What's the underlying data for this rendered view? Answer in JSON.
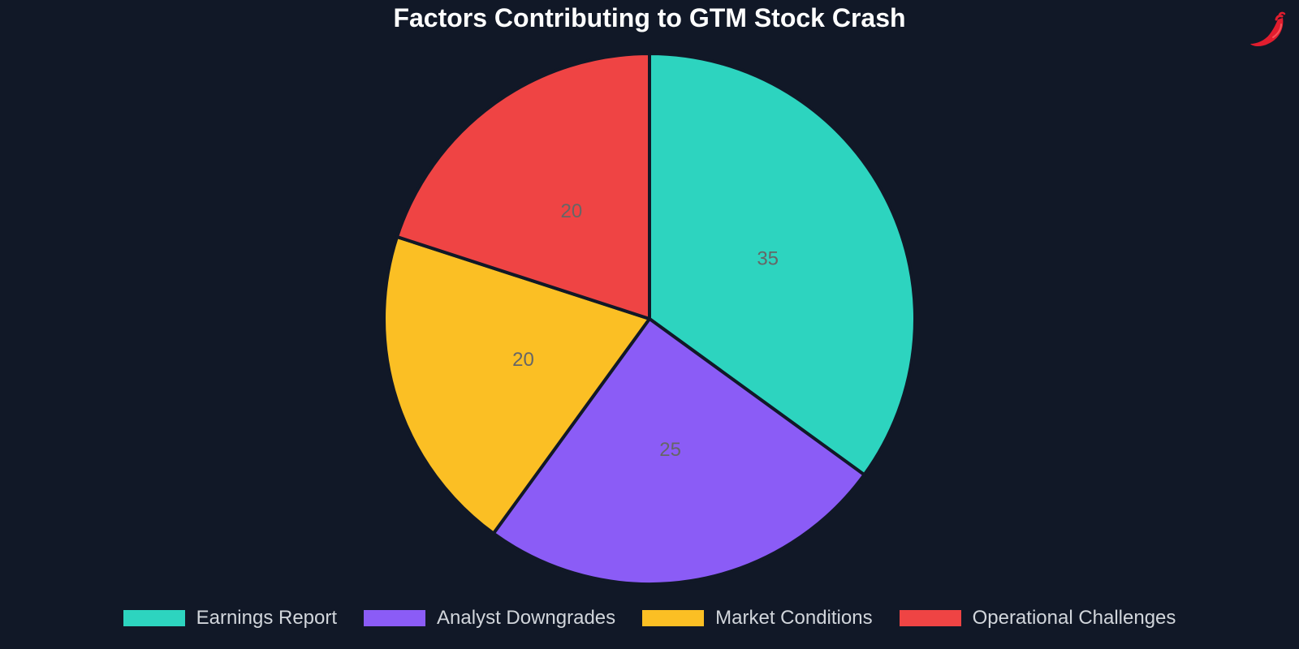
{
  "header": {
    "logo_icon": "chili-pepper-icon"
  },
  "colors": {
    "background": "#111827",
    "slice_border": "#111827",
    "title": "#ffffff",
    "legend_text": "#d1d5db",
    "slice_label": "#666666"
  },
  "chart_data": {
    "type": "pie",
    "title": "Factors Contributing to GTM Stock Crash",
    "categories": [
      "Earnings Report",
      "Analyst Downgrades",
      "Market Conditions",
      "Operational Challenges"
    ],
    "values": [
      35,
      25,
      20,
      20
    ],
    "value_labels": [
      "35",
      "25",
      "20",
      "20"
    ],
    "colors": [
      "#2dd4bf",
      "#8b5cf6",
      "#fbbf24",
      "#ef4444"
    ],
    "start_angle": "12 o'clock",
    "direction": "clockwise",
    "legend_position": "bottom"
  }
}
